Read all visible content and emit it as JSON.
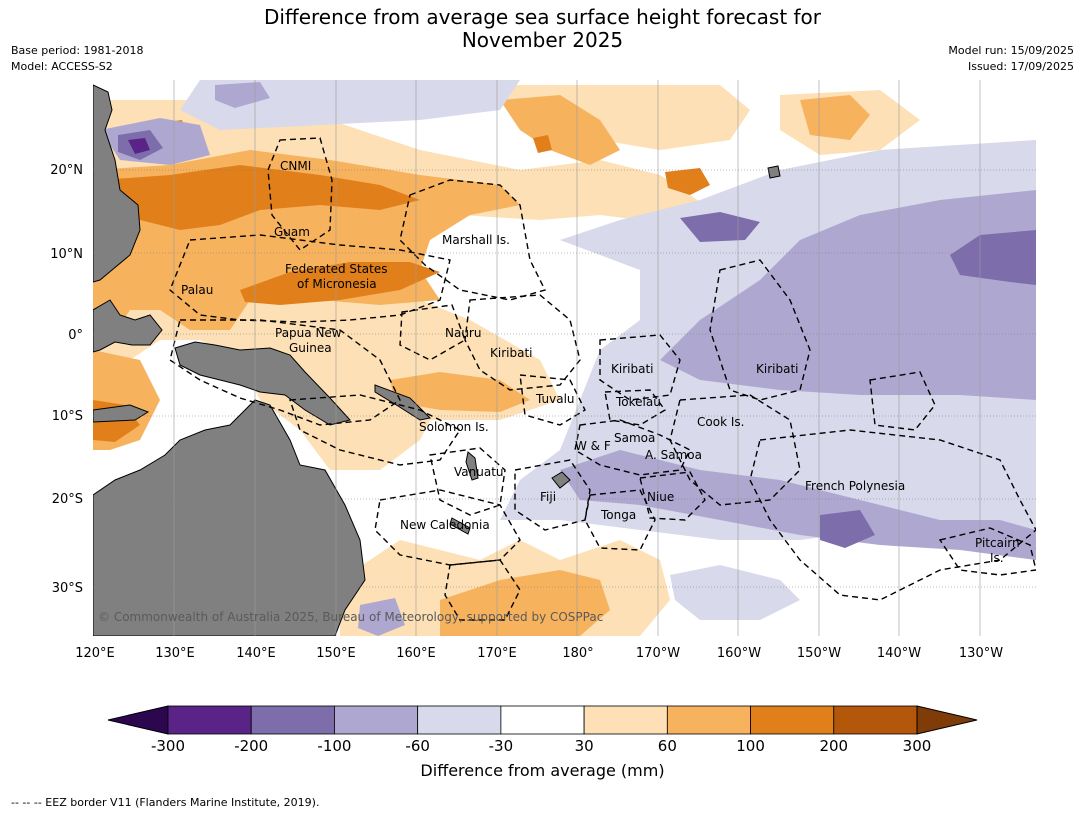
{
  "header": {
    "title_line1": "Difference from average sea surface height forecast for",
    "title_line2": "November 2025",
    "base_period": "Base period: 1981-2018",
    "model": "Model: ACCESS-S2",
    "model_run": "Model run: 15/09/2025",
    "issued": "Issued: 17/09/2025"
  },
  "map": {
    "lon_ticks": [
      "120°E",
      "130°E",
      "140°E",
      "150°E",
      "160°E",
      "170°E",
      "180°",
      "170°W",
      "160°W",
      "150°W",
      "140°W",
      "130°W"
    ],
    "lat_ticks": [
      "20°N",
      "10°N",
      "0°",
      "10°S",
      "20°S",
      "30°S"
    ],
    "region_labels": [
      "CNMI",
      "Guam",
      "Marshall Is.",
      "Federated States",
      "of Micronesia",
      "Palau",
      "Nauru",
      "Papua New",
      "Guinea",
      "Kiribati",
      "Kiribati",
      "Kiribati",
      "Tuvalu",
      "Tokelau",
      "Solomon Is.",
      "Samoa",
      "W & F",
      "A. Samoa",
      "Cook Is.",
      "Vanuatu",
      "Fiji",
      "Niue",
      "Tonga",
      "French Polynesia",
      "New Caledonia",
      "Pitcairn",
      "Is."
    ],
    "copyright": "© Commonwealth of Australia 2025, Bureau of Meteorology, supported by COSPPac",
    "colors": {
      "land": "#808080",
      "ocean": "#ffffff"
    }
  },
  "colorbar": {
    "ticks": [
      "-300",
      "-200",
      "-100",
      "-60",
      "-30",
      "30",
      "60",
      "100",
      "200",
      "300"
    ],
    "colors": [
      "#5a2387",
      "#7d6eab",
      "#aea8d1",
      "#d8d9ea",
      "#ffffff",
      "#fde0b5",
      "#f7b25e",
      "#e1801b",
      "#b3580a"
    ],
    "under_color": "#2d0650",
    "over_color": "#7f3b08",
    "label": "Difference from average (mm)"
  },
  "footer": {
    "text": "--  --  -- EEZ border V11 (Flanders Marine Institute, 2019)."
  }
}
